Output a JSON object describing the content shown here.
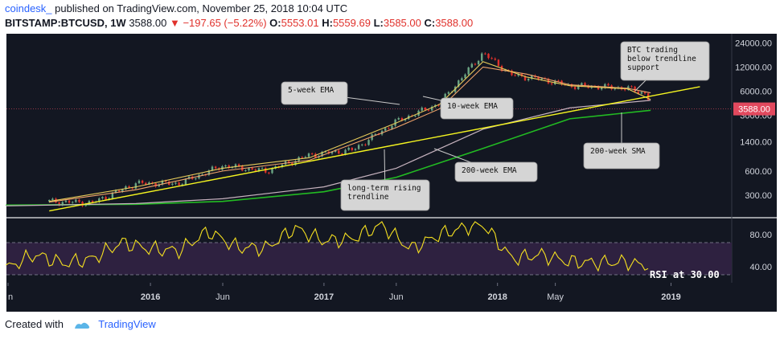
{
  "header": {
    "author": "coindesk_",
    "published": "published on TradingView.com, November 25, 2018 10:04 UTC",
    "symbol": "BITSTAMP:BTCUSD, 1W",
    "price": "3588.00",
    "change": "−197.65 (−5.22%)",
    "o_label": "O:",
    "o_value": "5553.01",
    "h_label": "H:",
    "h_value": "5559.69",
    "l_label": "L:",
    "l_value": "3585.00",
    "c_label": "C:",
    "c_value": "3588.00"
  },
  "footer": {
    "created_with": "Created with",
    "brand": "TradingView"
  },
  "colors": {
    "background": "#131722",
    "candle_up": "#6ba583",
    "candle_down": "#e0312b",
    "ema5": "#e8cc5a",
    "ema10": "#f2a46b",
    "ema200": "#c7b3bf",
    "sma200": "#22bb22",
    "trendline": "#f5f520",
    "rsi": "#f5e020",
    "rsi_band": "#2e2140",
    "price_tag": "#e2495e"
  },
  "chart_data": [
    {
      "type": "candlestick",
      "scale": "log",
      "series": [
        {
          "name": "BTCUSD weekly",
          "x": [
            "2015-06",
            "2015-09",
            "2015-12",
            "2016-03",
            "2016-06",
            "2016-09",
            "2016-12",
            "2017-03",
            "2017-06",
            "2017-09",
            "2017-12",
            "2018-02",
            "2018-04",
            "2018-06",
            "2018-08",
            "2018-10",
            "2018-11-12",
            "2018-11-19"
          ],
          "values": [
            250,
            240,
            420,
            420,
            700,
            600,
            950,
            1100,
            2500,
            4200,
            18000,
            9500,
            8500,
            7000,
            6800,
            6500,
            5500,
            3588
          ]
        },
        {
          "name": "5-week EMA",
          "x": [
            "2015-06",
            "2015-12",
            "2016-06",
            "2016-12",
            "2017-06",
            "2017-09",
            "2017-12",
            "2018-03",
            "2018-06",
            "2018-10",
            "2018-11-19"
          ],
          "values": [
            250,
            380,
            650,
            880,
            2400,
            4100,
            14000,
            9000,
            7000,
            6400,
            4700
          ]
        },
        {
          "name": "10-week EMA",
          "x": [
            "2015-06",
            "2015-12",
            "2016-06",
            "2016-12",
            "2017-06",
            "2017-09",
            "2017-12",
            "2018-03",
            "2018-06",
            "2018-10",
            "2018-11-19"
          ],
          "values": [
            245,
            350,
            600,
            820,
            2100,
            3600,
            12000,
            9800,
            7200,
            6500,
            5700
          ]
        },
        {
          "name": "200-week EMA",
          "x": [
            "2015-03",
            "2015-12",
            "2016-06",
            "2017-01",
            "2017-06",
            "2017-12",
            "2018-06",
            "2018-11-19"
          ],
          "values": [
            220,
            235,
            270,
            380,
            650,
            2000,
            3700,
            4600
          ]
        },
        {
          "name": "200-week SMA",
          "x": [
            "2015-03",
            "2015-12",
            "2016-06",
            "2017-01",
            "2017-06",
            "2017-12",
            "2018-06",
            "2018-11-19"
          ],
          "values": [
            225,
            230,
            250,
            330,
            500,
            1150,
            2700,
            3450
          ]
        },
        {
          "name": "long-term rising trendline",
          "x": [
            "2015-06",
            "2019-03"
          ],
          "values": [
            190,
            6800
          ]
        }
      ],
      "y_ticks": [
        "24000.00",
        "12000.00",
        "6000.00",
        "3588.00",
        "3000.00",
        "1400.00",
        "600.00",
        "300.00"
      ],
      "last_price": "3588.00",
      "annotations": [
        "5-week EMA",
        "10-week EMA",
        "BTC trading below trendline support",
        "200-week SMA",
        "200-week EMA",
        "long-term rising trendline"
      ]
    },
    {
      "type": "line",
      "name": "RSI",
      "x": [
        "2015-03",
        "2015-05",
        "2015-07",
        "2015-09",
        "2015-11",
        "2016-01",
        "2016-03",
        "2016-05",
        "2016-07",
        "2016-09",
        "2016-11",
        "2017-01",
        "2017-03",
        "2017-05",
        "2017-07",
        "2017-09",
        "2017-11",
        "2017-12",
        "2018-02",
        "2018-04",
        "2018-06",
        "2018-08",
        "2018-10",
        "2018-11-12",
        "2018-11-19"
      ],
      "values": [
        38,
        55,
        44,
        50,
        70,
        62,
        60,
        84,
        64,
        63,
        88,
        72,
        75,
        92,
        62,
        80,
        90,
        93,
        50,
        55,
        46,
        45,
        46,
        40,
        30
      ],
      "y_ticks": [
        "80.00",
        "40.00"
      ],
      "bands": [
        30,
        70
      ],
      "annotation": "RSI at 30.00"
    }
  ],
  "x_labels": [
    "n",
    "2016",
    "Jun",
    "2017",
    "Jun",
    "2018",
    "May",
    "2019"
  ]
}
